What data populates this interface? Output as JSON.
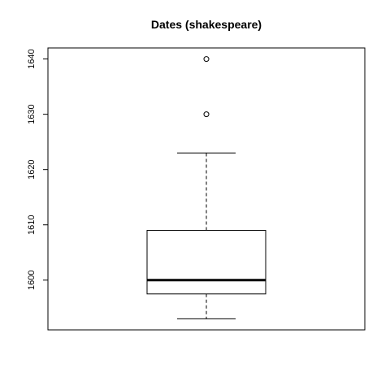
{
  "chart_data": {
    "type": "boxplot",
    "title": "Dates (shakespeare)",
    "xlabel": "",
    "ylabel": "",
    "ylim": [
      1591,
      1642
    ],
    "yticks": [
      1600,
      1610,
      1620,
      1630,
      1640
    ],
    "grid": false,
    "box": {
      "whisker_low": 1593,
      "q1": 1597.5,
      "median": 1600,
      "q3": 1609,
      "whisker_high": 1623,
      "outliers": [
        1630,
        1640
      ]
    }
  }
}
